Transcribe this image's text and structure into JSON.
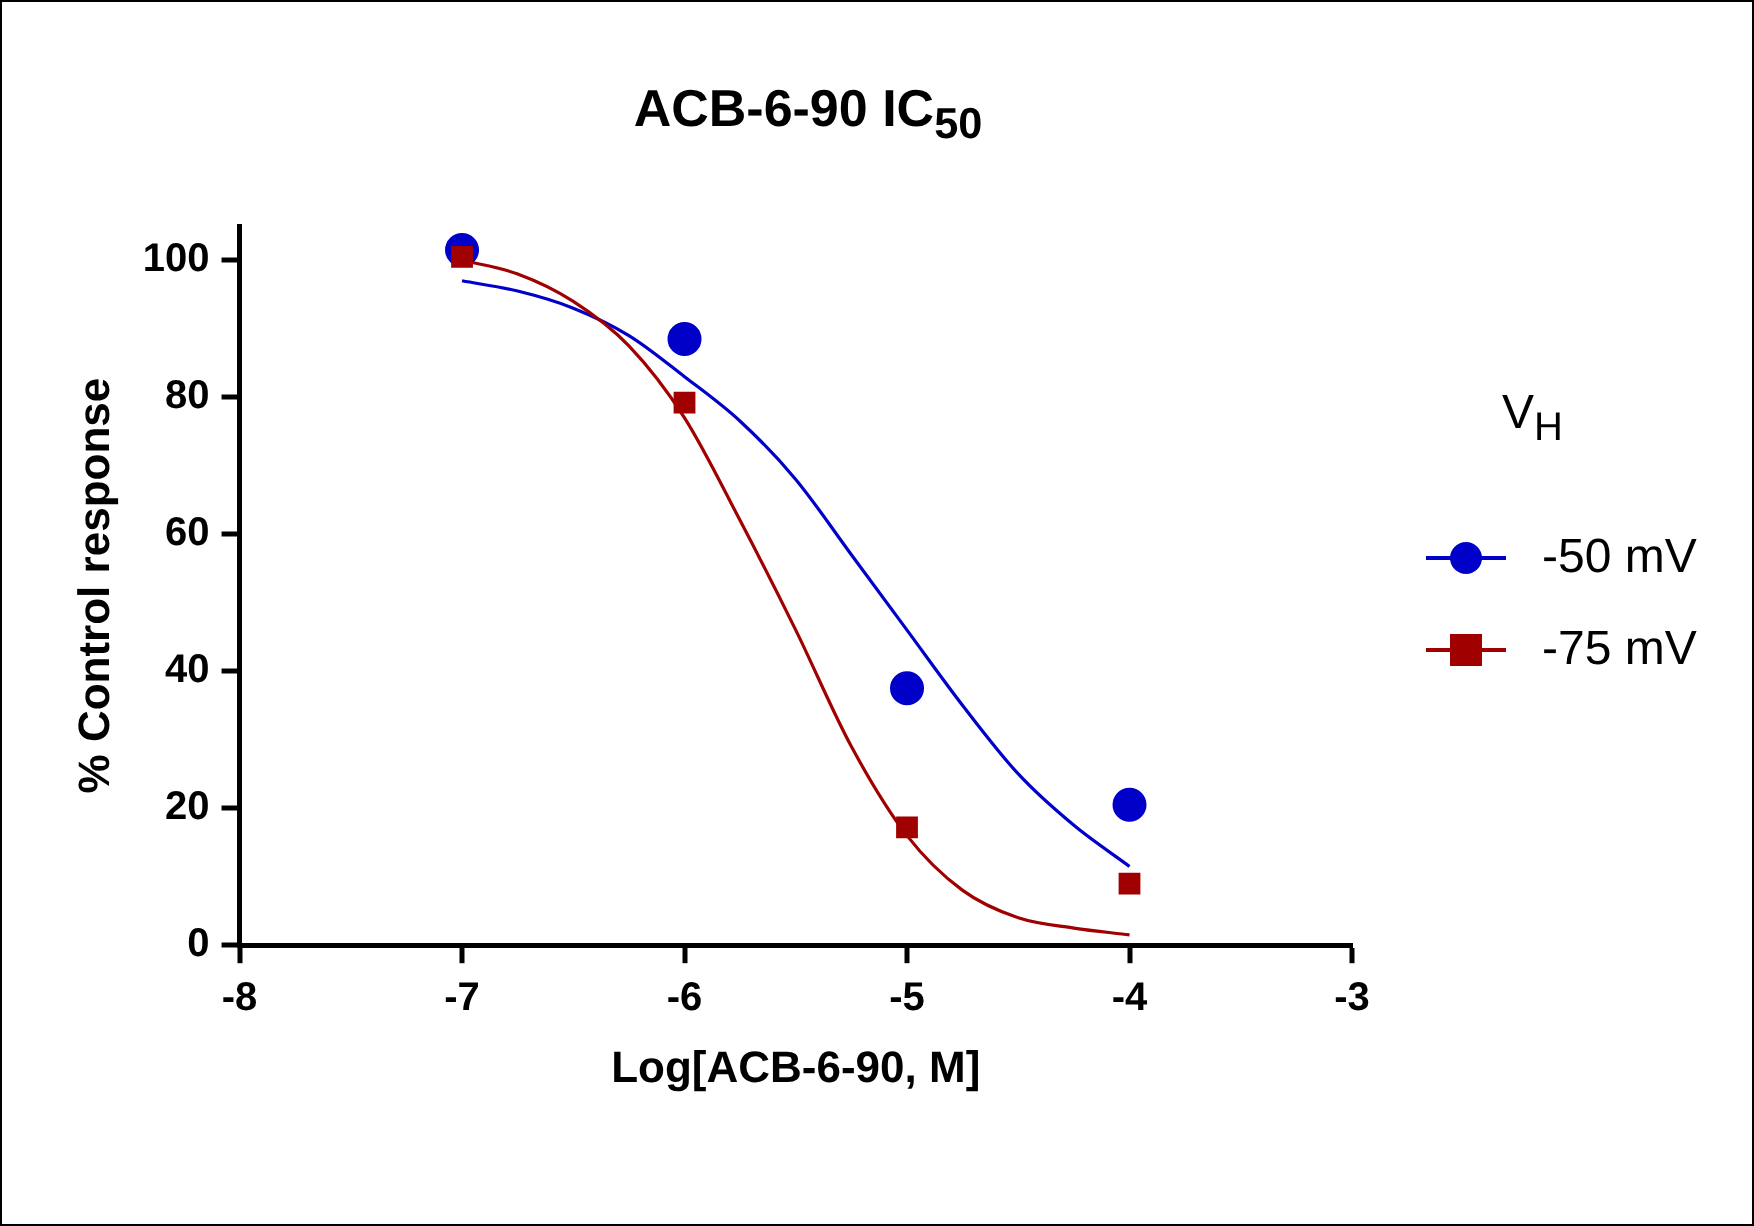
{
  "chart_data": {
    "type": "scatter",
    "title": "ACB-6-90 IC$_{50}$",
    "xlabel": "Log[ACB-6-90, M]",
    "ylabel": "% Control response",
    "legend_title": "V$_{H}$",
    "legend": "right",
    "xlim": [
      -8,
      -3
    ],
    "xticks": [
      -8,
      -7,
      -6,
      -5,
      -4,
      -3
    ],
    "ylim": [
      0,
      105
    ],
    "yticks": [
      0,
      20,
      40,
      60,
      80,
      100
    ],
    "grid": false,
    "series": [
      {
        "name": "-50 mV",
        "type": "scatter",
        "color": "#0000c8",
        "marker": "circle",
        "x": [
          -7,
          -6,
          -5,
          -4
        ],
        "values": [
          101.5,
          88.5,
          37.5,
          20.5
        ]
      },
      {
        "name": "-75 mV",
        "type": "scatter",
        "color": "#a00000",
        "marker": "square",
        "x": [
          -7,
          -6,
          -5,
          -4
        ],
        "values": [
          100.5,
          79.2,
          17.2,
          9
        ]
      },
      {
        "type": "line",
        "color": "#0000c8",
        "marker": "none",
        "x": [
          -7,
          -6.75,
          -6.5,
          -6.25,
          -6,
          -5.75,
          -5.5,
          -5.25,
          -5,
          -4.75,
          -4.5,
          -4.25,
          -4
        ],
        "values": [
          97,
          95.5,
          93,
          89,
          83,
          76.5,
          68,
          57,
          46,
          35,
          25,
          17.5,
          11.5
        ]
      },
      {
        "type": "line",
        "color": "#a00000",
        "marker": "none",
        "x": [
          -7,
          -6.75,
          -6.5,
          -6.25,
          -6,
          -5.75,
          -5.5,
          -5.25,
          -5,
          -4.75,
          -4.5,
          -4.25,
          -4
        ],
        "values": [
          100,
          98,
          94,
          87.5,
          77,
          62,
          46,
          29,
          16,
          8,
          4,
          2.5,
          1.5
        ]
      }
    ]
  }
}
